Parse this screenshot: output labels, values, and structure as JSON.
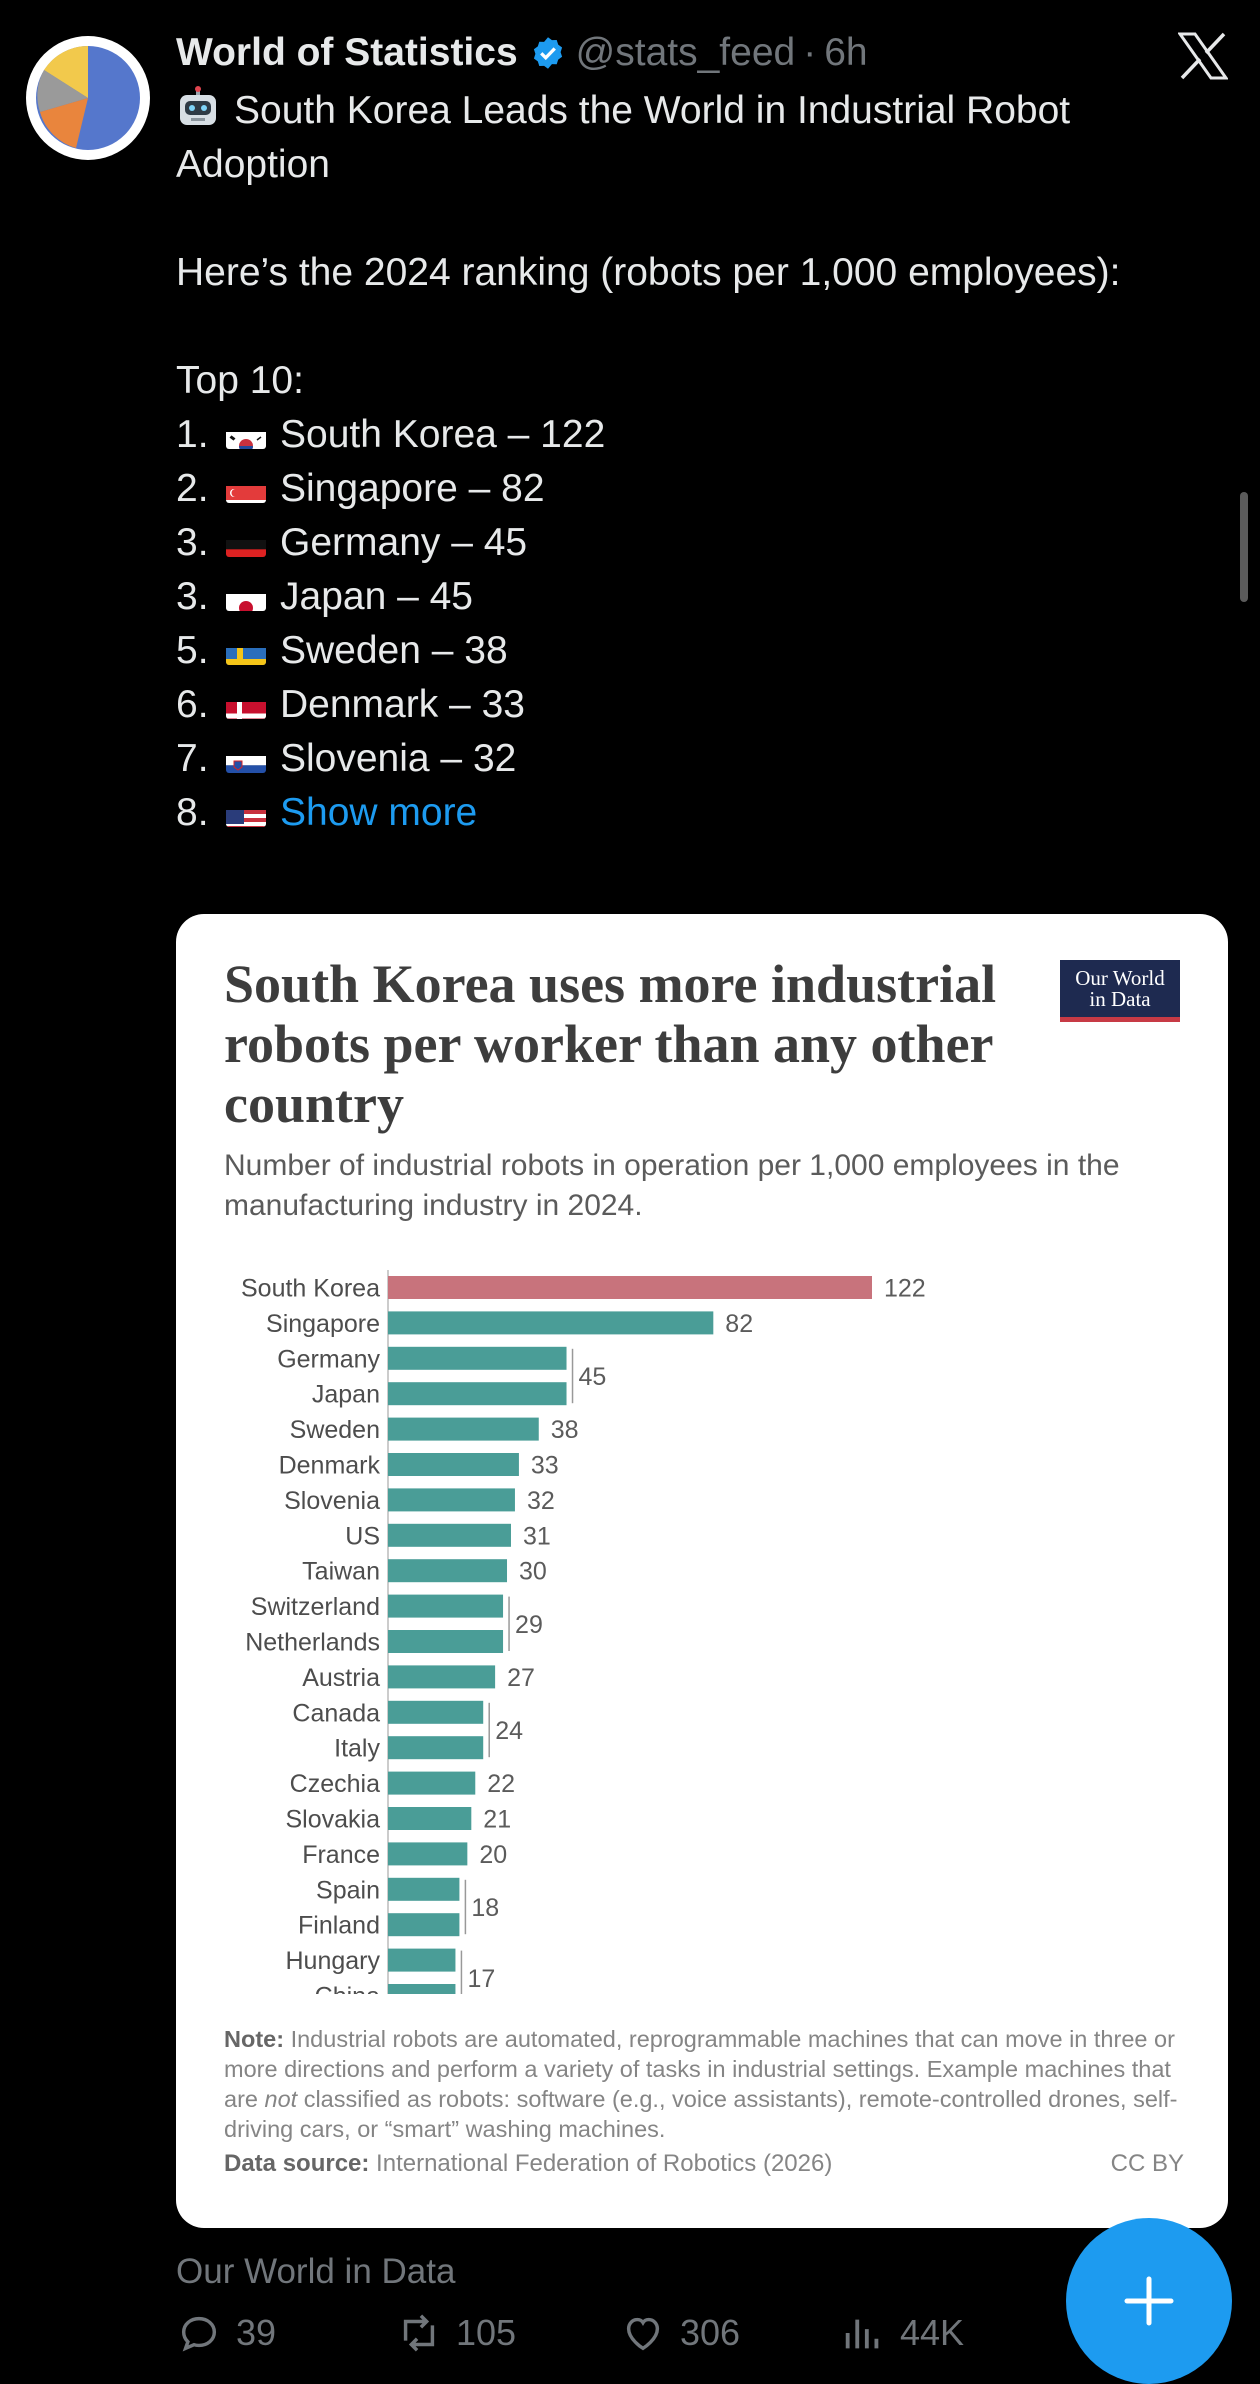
{
  "tweet": {
    "author": "World of Statistics",
    "handle": "@stats_feed",
    "dot": "·",
    "time": "6h",
    "headline": "South Korea Leads the World in Industrial Robot Adoption",
    "intro": "Here’s the 2024 ranking (robots per 1,000 employees):",
    "list_title": "Top 10:",
    "ranking": [
      {
        "rank": "1.",
        "country": "South Korea – 122",
        "flag": "kr"
      },
      {
        "rank": "2.",
        "country": "Singapore – 82",
        "flag": "sg"
      },
      {
        "rank": "3.",
        "country": "Germany – 45",
        "flag": "de"
      },
      {
        "rank": "3.",
        "country": "Japan – 45",
        "flag": "jp"
      },
      {
        "rank": "5.",
        "country": "Sweden – 38",
        "flag": "se"
      },
      {
        "rank": "6.",
        "country": "Denmark – 33",
        "flag": "dk"
      },
      {
        "rank": "7.",
        "country": "Slovenia – 32",
        "flag": "si"
      }
    ],
    "last_rank": "8.",
    "show_more": "Show more",
    "link_source": "Our World in Data"
  },
  "card": {
    "title": "South Korea uses more industrial robots per worker than any other country",
    "logo_line1": "Our World",
    "logo_line2": "in Data",
    "subtitle": "Number of industrial robots in operation per 1,000 employees in the manufacturing industry in 2024.",
    "note_label": "Note:",
    "note_text": " Industrial robots are automated, reprogrammable machines that can move in three or more directions and perform a variety of tasks in industrial settings. Example machines that are ",
    "note_not": "not",
    "note_text2": " classified as robots: software (e.g., voice assistants), remote-controlled drones, self-driving cars, or “smart” washing machines.",
    "source_label": "Data source:",
    "source_text": " International Federation of Robotics (2026)",
    "license": "CC BY"
  },
  "chart_data": {
    "type": "bar",
    "orientation": "horizontal",
    "title": "South Korea uses more industrial robots per worker than any other country",
    "subtitle": "Number of industrial robots in operation per 1,000 employees in the manufacturing industry in 2024.",
    "categories": [
      "South Korea",
      "Singapore",
      "Germany",
      "Japan",
      "Sweden",
      "Denmark",
      "Slovenia",
      "US",
      "Taiwan",
      "Switzerland",
      "Netherlands",
      "Austria",
      "Canada",
      "Italy",
      "Czechia",
      "Slovakia",
      "France",
      "Spain",
      "Finland",
      "Hungary",
      "China"
    ],
    "values": [
      122,
      82,
      45,
      45,
      38,
      33,
      32,
      31,
      30,
      29,
      29,
      27,
      24,
      24,
      22,
      21,
      20,
      18,
      18,
      17,
      17
    ],
    "value_labels": [
      {
        "label": "122",
        "rows": [
          0
        ]
      },
      {
        "label": "82",
        "rows": [
          1
        ]
      },
      {
        "label": "45",
        "rows": [
          2,
          3
        ]
      },
      {
        "label": "38",
        "rows": [
          4
        ]
      },
      {
        "label": "33",
        "rows": [
          5
        ]
      },
      {
        "label": "32",
        "rows": [
          6
        ]
      },
      {
        "label": "31",
        "rows": [
          7
        ]
      },
      {
        "label": "30",
        "rows": [
          8
        ]
      },
      {
        "label": "29",
        "rows": [
          9,
          10
        ]
      },
      {
        "label": "27",
        "rows": [
          11
        ]
      },
      {
        "label": "24",
        "rows": [
          12,
          13
        ]
      },
      {
        "label": "22",
        "rows": [
          14
        ]
      },
      {
        "label": "21",
        "rows": [
          15
        ]
      },
      {
        "label": "20",
        "rows": [
          16
        ]
      },
      {
        "label": "18",
        "rows": [
          17,
          18
        ]
      },
      {
        "label": "17",
        "rows": [
          19,
          20
        ]
      }
    ],
    "highlight_color": "#c8737c",
    "bar_color": "#4a9d97",
    "grid": false
  },
  "stats": {
    "replies": "39",
    "reposts": "105",
    "likes": "306",
    "views": "44K"
  },
  "colors": {
    "accent": "#1d9bf0",
    "background": "#000000",
    "text": "#e7e9ea",
    "muted": "#71767b"
  },
  "icons": {
    "verified": "verified-badge-icon",
    "platform": "x-logo-icon",
    "compose": "plus-icon"
  }
}
